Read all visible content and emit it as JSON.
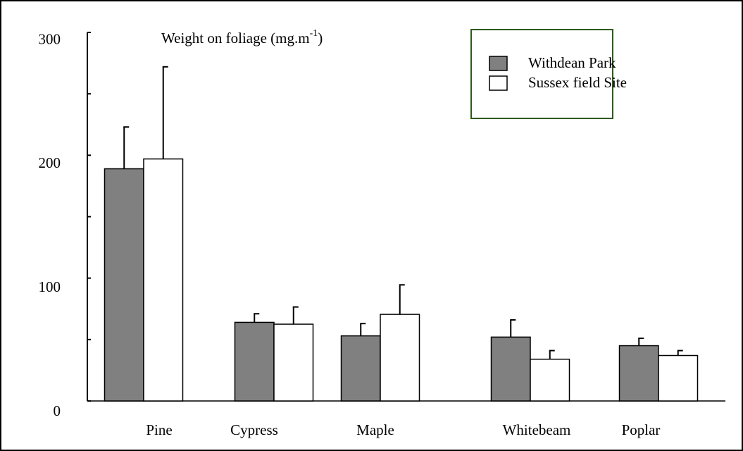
{
  "chart_data": {
    "type": "bar",
    "title": [
      "Weight on foliage (mg.m",
      "-1",
      ")"
    ],
    "categories": [
      "Pine",
      "Cypress",
      "Maple",
      "Whitebeam",
      "Poplar"
    ],
    "series": [
      {
        "name": "Withdean Park",
        "color": "#808080",
        "values": [
          189,
          64,
          53,
          52,
          45
        ],
        "errors": [
          34,
          7,
          10,
          14,
          6
        ]
      },
      {
        "name": "Sussex field Site",
        "color": "#ffffff",
        "values": [
          197,
          62.5,
          70.5,
          34,
          37
        ],
        "errors": [
          75,
          14,
          24,
          7,
          4
        ]
      }
    ],
    "ylim": [
      0,
      300
    ],
    "yticks": [
      0,
      100,
      200,
      300
    ],
    "yminor_ticks": [
      50,
      150,
      250
    ],
    "legend": "upper right"
  }
}
